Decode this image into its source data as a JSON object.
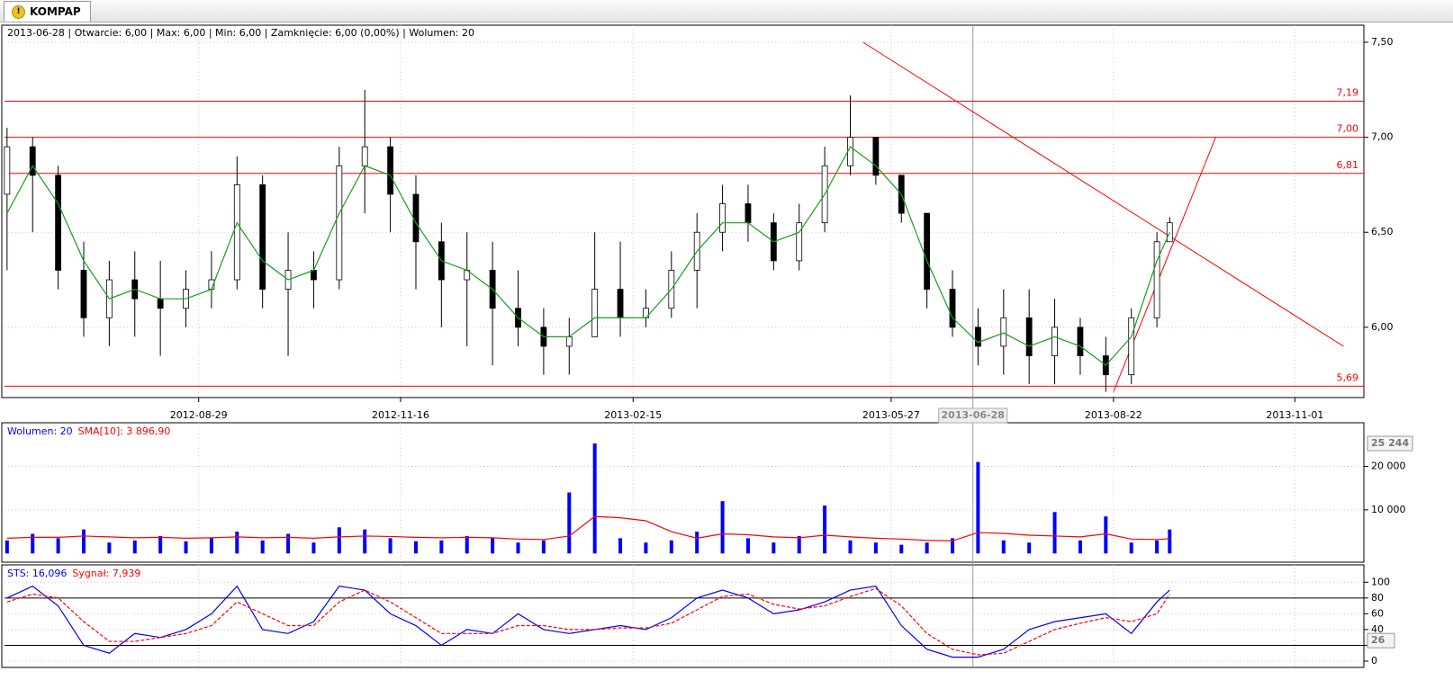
{
  "tab": {
    "title": "KOMPAP"
  },
  "chart_data": [
    {
      "type": "candlestick",
      "info": "2013-06-28 | Otwarcie: 6,00 | Max: 6,00 | Min: 6,00 | Zamknięcie: 6,00 (0,00%)  | Wolumen: 20",
      "x": [
        "2012-06-15",
        "2012-06-25",
        "2012-07-05",
        "2012-07-15",
        "2012-07-25",
        "2012-08-04",
        "2012-08-14",
        "2012-08-24",
        "2012-09-03",
        "2012-09-13",
        "2012-09-23",
        "2012-10-03",
        "2012-10-13",
        "2012-10-23",
        "2012-11-02",
        "2012-11-12",
        "2012-11-22",
        "2012-12-02",
        "2012-12-12",
        "2012-12-22",
        "2013-01-01",
        "2013-01-11",
        "2013-01-21",
        "2013-01-31",
        "2013-02-10",
        "2013-02-20",
        "2013-03-02",
        "2013-03-12",
        "2013-03-22",
        "2013-04-01",
        "2013-04-11",
        "2013-04-21",
        "2013-05-01",
        "2013-05-11",
        "2013-05-21",
        "2013-05-31",
        "2013-06-10",
        "2013-06-20",
        "2013-06-30",
        "2013-07-10",
        "2013-07-20",
        "2013-07-30",
        "2013-08-09",
        "2013-08-19",
        "2013-08-29",
        "2013-09-08",
        "2013-09-13"
      ],
      "open": [
        6.7,
        6.95,
        6.8,
        6.3,
        6.05,
        6.25,
        6.15,
        6.1,
        6.2,
        6.25,
        6.75,
        6.2,
        6.3,
        6.25,
        6.85,
        6.95,
        6.7,
        6.45,
        6.25,
        6.3,
        6.1,
        6.0,
        5.9,
        5.95,
        6.2,
        6.05,
        6.1,
        6.3,
        6.5,
        6.65,
        6.55,
        6.35,
        6.55,
        6.85,
        7.0,
        6.8,
        6.6,
        6.2,
        6.0,
        5.9,
        6.05,
        5.85,
        6.0,
        5.85,
        5.75,
        6.05,
        6.45
      ],
      "high": [
        7.05,
        7.0,
        6.85,
        6.45,
        6.35,
        6.4,
        6.35,
        6.3,
        6.4,
        6.9,
        6.8,
        6.5,
        6.4,
        6.95,
        7.25,
        7.0,
        6.8,
        6.55,
        6.5,
        6.45,
        6.3,
        6.1,
        6.05,
        6.5,
        6.45,
        6.2,
        6.4,
        6.6,
        6.75,
        6.75,
        6.6,
        6.65,
        6.95,
        7.22,
        7.0,
        6.8,
        6.6,
        6.3,
        6.1,
        6.2,
        6.2,
        6.15,
        6.05,
        5.95,
        6.1,
        6.5,
        6.58
      ],
      "low": [
        6.3,
        6.5,
        6.2,
        5.95,
        5.9,
        5.95,
        5.85,
        6.0,
        6.1,
        6.2,
        6.1,
        5.85,
        6.1,
        6.2,
        6.6,
        6.5,
        6.2,
        6.0,
        5.9,
        5.8,
        5.9,
        5.75,
        5.75,
        5.95,
        5.95,
        6.0,
        6.05,
        6.1,
        6.4,
        6.45,
        6.3,
        6.3,
        6.5,
        6.8,
        6.75,
        6.55,
        6.1,
        5.95,
        5.8,
        5.75,
        5.7,
        5.7,
        5.75,
        5.66,
        5.7,
        6.0,
        6.45
      ],
      "close": [
        6.95,
        6.8,
        6.3,
        6.05,
        6.25,
        6.15,
        6.1,
        6.2,
        6.25,
        6.75,
        6.2,
        6.3,
        6.25,
        6.85,
        6.95,
        6.7,
        6.45,
        6.25,
        6.3,
        6.1,
        6.0,
        5.9,
        5.95,
        6.2,
        6.05,
        6.1,
        6.3,
        6.5,
        6.65,
        6.55,
        6.35,
        6.55,
        6.85,
        7.0,
        6.8,
        6.6,
        6.2,
        6.0,
        5.9,
        6.05,
        5.85,
        6.0,
        5.85,
        5.75,
        6.05,
        6.45,
        6.55
      ],
      "ma": {
        "color": "#1a9e1a",
        "values": [
          6.6,
          6.85,
          6.65,
          6.35,
          6.15,
          6.2,
          6.15,
          6.15,
          6.2,
          6.55,
          6.35,
          6.25,
          6.3,
          6.6,
          6.85,
          6.8,
          6.55,
          6.35,
          6.3,
          6.2,
          6.05,
          5.95,
          5.95,
          6.05,
          6.05,
          6.05,
          6.2,
          6.4,
          6.55,
          6.55,
          6.45,
          6.5,
          6.7,
          6.95,
          6.85,
          6.7,
          6.35,
          6.05,
          5.92,
          5.97,
          5.9,
          5.95,
          5.9,
          5.8,
          5.95,
          6.35,
          6.5
        ]
      },
      "xlim": [
        "2012-06-14",
        "2013-11-28"
      ],
      "xticks": [
        "2012-08-29",
        "2012-11-16",
        "2013-02-15",
        "2013-05-27",
        "2013-08-22",
        "2013-11-01"
      ],
      "cursor": "2013-06-28",
      "ylim": [
        5.63,
        7.59
      ],
      "yticks": [
        {
          "value": 6.0,
          "label": "6,00"
        },
        {
          "value": 6.5,
          "label": "6,50"
        },
        {
          "value": 7.0,
          "label": "7,00"
        },
        {
          "value": 7.5,
          "label": "7,50"
        }
      ],
      "levels": [
        {
          "value": 7.19,
          "label": "7,19"
        },
        {
          "value": 7.0,
          "label": "7,00"
        },
        {
          "value": 6.81,
          "label": "6,81"
        },
        {
          "value": 5.69,
          "label": "5,69"
        }
      ],
      "level_color": "#ff0000",
      "trend_lines": [
        {
          "from": [
            "2013-05-16",
            7.5
          ],
          "to": [
            "2013-11-20",
            5.9
          ]
        },
        {
          "from": [
            "2013-08-22",
            5.66
          ],
          "to": [
            "2013-10-01",
            7.0
          ]
        }
      ],
      "grid": true
    },
    {
      "type": "bar",
      "legend": [
        {
          "text": "Wolumen: 20",
          "color": "#0000ff"
        },
        {
          "text": "SMA[10]: 3 896,90",
          "color": "#ff0000"
        }
      ],
      "series": [
        {
          "name": "Wolumen",
          "color": "#0000ff",
          "values": [
            3000,
            4500,
            3500,
            5500,
            2500,
            3000,
            4000,
            2800,
            3500,
            5000,
            3000,
            4500,
            2500,
            6000,
            5500,
            3500,
            2800,
            3000,
            4000,
            3500,
            2500,
            3000,
            14000,
            25244,
            3500,
            2500,
            3000,
            5000,
            12000,
            3500,
            2500,
            4000,
            11000,
            3000,
            2500,
            2000,
            2500,
            3500,
            21000,
            3000,
            2500,
            9500,
            3000,
            8500,
            2500,
            3000,
            5500
          ]
        },
        {
          "name": "SMA[10]",
          "color": "#ff0000",
          "values": [
            3500,
            3700,
            3700,
            4000,
            3800,
            3600,
            3700,
            3500,
            3600,
            3800,
            3600,
            3700,
            3500,
            3800,
            4000,
            3900,
            3700,
            3600,
            3700,
            3600,
            3300,
            3200,
            4000,
            8500,
            8200,
            7500,
            5000,
            3500,
            4500,
            4300,
            3800,
            3600,
            4200,
            3800,
            3500,
            3300,
            3000,
            2900,
            4800,
            4600,
            4200,
            4000,
            3800,
            4500,
            3300,
            3200,
            3400
          ]
        }
      ],
      "ylim": [
        -2000,
        30000
      ],
      "yticks": [
        {
          "value": 10000,
          "label": "10 000"
        },
        {
          "value": 20000,
          "label": "20 000"
        }
      ],
      "last_label": {
        "value": 25244,
        "label": "25 244"
      }
    },
    {
      "type": "line",
      "legend": [
        {
          "text": "STS: 16,096",
          "color": "#0000ff"
        },
        {
          "text": "Sygnał: 7,939",
          "color": "#ff0000"
        }
      ],
      "series": [
        {
          "name": "STS",
          "color": "#0000ff",
          "values": [
            80,
            95,
            70,
            20,
            10,
            35,
            30,
            40,
            60,
            95,
            40,
            35,
            50,
            95,
            90,
            60,
            45,
            20,
            40,
            35,
            60,
            40,
            35,
            40,
            45,
            40,
            55,
            80,
            90,
            80,
            60,
            65,
            75,
            90,
            95,
            45,
            15,
            5,
            5,
            15,
            40,
            50,
            55,
            60,
            35,
            75,
            90
          ]
        },
        {
          "name": "Sygnał",
          "color": "#ff0000",
          "values": [
            75,
            85,
            80,
            50,
            25,
            25,
            30,
            35,
            45,
            75,
            60,
            45,
            45,
            75,
            90,
            75,
            55,
            35,
            35,
            35,
            45,
            45,
            40,
            40,
            42,
            42,
            48,
            65,
            82,
            85,
            72,
            66,
            70,
            82,
            92,
            70,
            35,
            15,
            8,
            10,
            25,
            40,
            48,
            55,
            50,
            60,
            85
          ]
        }
      ],
      "ylim": [
        -8,
        122
      ],
      "yticks": [
        0,
        20,
        40,
        60,
        80,
        100
      ],
      "levels": [
        20,
        80
      ],
      "last_label": 26
    }
  ]
}
